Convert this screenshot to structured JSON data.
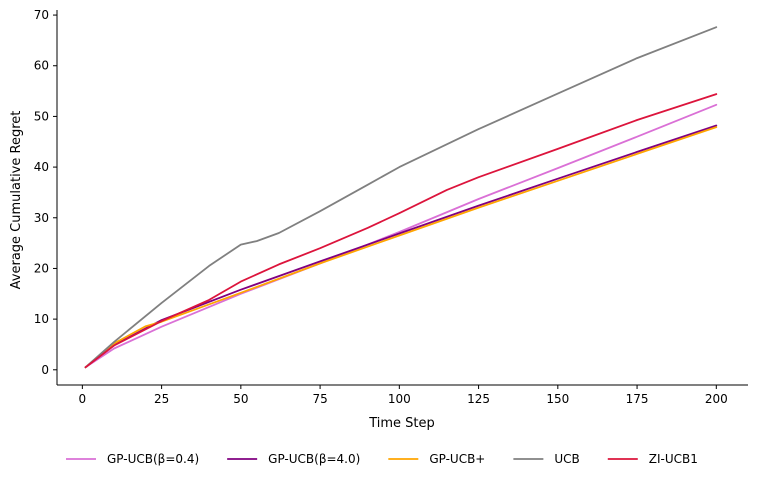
{
  "chart_data": {
    "type": "line",
    "title": "",
    "xlabel": "Time Step",
    "ylabel": "Average Cumulative Regret",
    "xlim": [
      -8,
      210
    ],
    "ylim": [
      -3,
      71
    ],
    "xticks": [
      "0",
      "25",
      "50",
      "75",
      "100",
      "125",
      "150",
      "175",
      "200"
    ],
    "yticks": [
      "0",
      "10",
      "20",
      "30",
      "40",
      "50",
      "60",
      "70"
    ],
    "grid": false,
    "legend_position": "bottom",
    "series": [
      {
        "name": "GP-UCB(β=0.4)",
        "color": "#da70d6",
        "points": [
          [
            1,
            0.5
          ],
          [
            10,
            4.2
          ],
          [
            25,
            8.5
          ],
          [
            50,
            15.0
          ],
          [
            75,
            21.0
          ],
          [
            100,
            27.2
          ],
          [
            125,
            33.7
          ],
          [
            150,
            39.8
          ],
          [
            175,
            46.0
          ],
          [
            200,
            52.3
          ]
        ]
      },
      {
        "name": "GP-UCB(β=4.0)",
        "color": "#800080",
        "points": [
          [
            1,
            0.5
          ],
          [
            10,
            4.9
          ],
          [
            25,
            9.8
          ],
          [
            50,
            15.8
          ],
          [
            75,
            21.4
          ],
          [
            100,
            26.9
          ],
          [
            125,
            32.4
          ],
          [
            150,
            37.7
          ],
          [
            175,
            43.0
          ],
          [
            200,
            48.2
          ]
        ]
      },
      {
        "name": "GP-UCB+",
        "color": "#ffa500",
        "points": [
          [
            1,
            0.5
          ],
          [
            10,
            5.2
          ],
          [
            20,
            8.6
          ],
          [
            25,
            9.5
          ],
          [
            50,
            15.2
          ],
          [
            75,
            21.0
          ],
          [
            100,
            26.5
          ],
          [
            125,
            32.0
          ],
          [
            150,
            37.3
          ],
          [
            175,
            42.6
          ],
          [
            200,
            47.9
          ]
        ]
      },
      {
        "name": "UCB",
        "color": "#808080",
        "points": [
          [
            1,
            0.5
          ],
          [
            10,
            5.5
          ],
          [
            25,
            13.2
          ],
          [
            40,
            20.5
          ],
          [
            50,
            24.7
          ],
          [
            55,
            25.4
          ],
          [
            62,
            27.0
          ],
          [
            75,
            31.3
          ],
          [
            90,
            36.5
          ],
          [
            100,
            40.0
          ],
          [
            125,
            47.5
          ],
          [
            150,
            54.5
          ],
          [
            175,
            61.5
          ],
          [
            200,
            67.6
          ]
        ]
      },
      {
        "name": "ZI-UCB1",
        "color": "#dc143c",
        "points": [
          [
            1,
            0.5
          ],
          [
            10,
            4.8
          ],
          [
            25,
            9.6
          ],
          [
            40,
            13.8
          ],
          [
            50,
            17.4
          ],
          [
            62,
            20.8
          ],
          [
            75,
            24.0
          ],
          [
            90,
            28.0
          ],
          [
            100,
            30.9
          ],
          [
            115,
            35.5
          ],
          [
            125,
            38.0
          ],
          [
            150,
            43.6
          ],
          [
            175,
            49.3
          ],
          [
            200,
            54.4
          ]
        ]
      }
    ]
  }
}
